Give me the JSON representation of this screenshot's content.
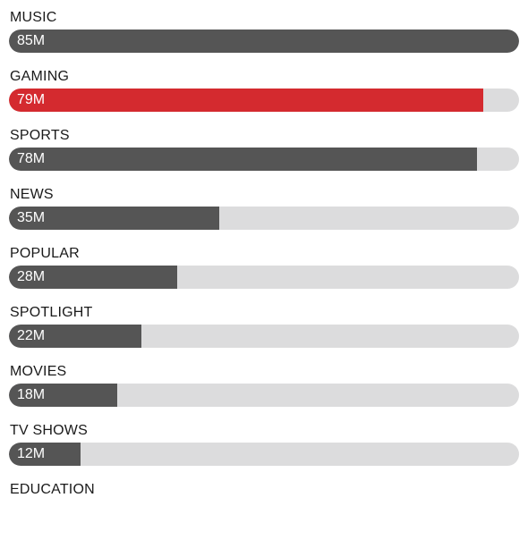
{
  "chart_data": {
    "type": "bar",
    "orientation": "horizontal",
    "categories": [
      "MUSIC",
      "GAMING",
      "SPORTS",
      "NEWS",
      "POPULAR",
      "SPOTLIGHT",
      "MOVIES",
      "TV SHOWS",
      "EDUCATION"
    ],
    "values": [
      85,
      79,
      78,
      35,
      28,
      22,
      18,
      12,
      null
    ],
    "value_labels": [
      "85M",
      "79M",
      "78M",
      "35M",
      "28M",
      "22M",
      "18M",
      "12M",
      ""
    ],
    "xlim": [
      0,
      85
    ],
    "title": "",
    "xlabel": "",
    "ylabel": "",
    "grid": false,
    "legend": "none",
    "colors": {
      "default": "#555555",
      "highlight": "#d42a2f",
      "track": "#dcdcdd",
      "label": "#1a1a1a",
      "value_text": "#ffffff"
    },
    "highlight_index": 1
  }
}
